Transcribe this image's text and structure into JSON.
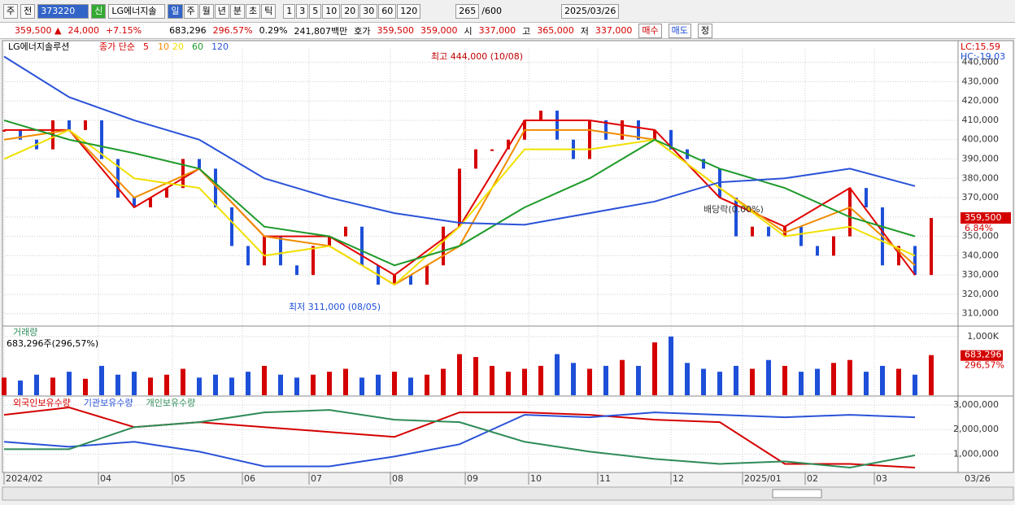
{
  "toolbar": {
    "market": "주",
    "prev": "전",
    "code": "373220",
    "tag": "신",
    "name": "LG에너지솔",
    "periods": [
      "일",
      "주",
      "월",
      "년",
      "분",
      "초",
      "틱"
    ],
    "intervals": [
      "1",
      "3",
      "5",
      "10",
      "20",
      "30",
      "60",
      "120"
    ],
    "count": "265",
    "max": "/600",
    "date": "2025/03/26"
  },
  "info": {
    "price": "359,500 ▲",
    "change": "24,000",
    "rate": "+7.15%",
    "volume": "683,296",
    "volume_rate": "296.57%",
    "turnover": "0.29%",
    "amount": "241,807백만",
    "quote_label": "호가",
    "ask": "359,500",
    "bid": "359,000",
    "open_label": "시",
    "open": "337,000",
    "high_label": "고",
    "high": "365,000",
    "low_label": "저",
    "low": "337,000",
    "buy": "매수",
    "sell": "매도",
    "correct": "정"
  },
  "chart_data": [
    {
      "type": "line",
      "title": "LG에너지솔루션",
      "legend_label": "종가 단순",
      "color": "#d40000",
      "down_color": "#1d4fd8",
      "values": [
        405000,
        400000,
        395000,
        410000,
        405000,
        410000,
        390000,
        370000,
        365000,
        370000,
        375000,
        390000,
        385000,
        365000,
        345000,
        335000,
        350000,
        335000,
        330000,
        345000,
        350000,
        355000,
        335000,
        325000,
        330000,
        325000,
        335000,
        355000,
        385000,
        395000,
        395000,
        400000,
        410000,
        415000,
        400000,
        390000,
        410000,
        400000,
        410000,
        400000,
        405000,
        395000,
        390000,
        385000,
        370000,
        350000,
        355000,
        350000,
        355000,
        345000,
        340000,
        350000,
        375000,
        365000,
        335000,
        345000,
        330000,
        359500
      ],
      "series": [
        {
          "name": "5",
          "color": "#e00000",
          "x": [
            0,
            4,
            8,
            12,
            16,
            20,
            24,
            28,
            32,
            36,
            40,
            44,
            48,
            52,
            56
          ],
          "values": [
            405000,
            405000,
            365000,
            385000,
            350000,
            350000,
            330000,
            355000,
            410000,
            410000,
            405000,
            370000,
            355000,
            375000,
            330000
          ]
        },
        {
          "name": "10",
          "color": "#f08c00",
          "x": [
            0,
            4,
            8,
            12,
            16,
            20,
            24,
            28,
            32,
            36,
            40,
            44,
            48,
            52,
            56
          ],
          "values": [
            400000,
            405000,
            370000,
            385000,
            350000,
            345000,
            325000,
            345000,
            405000,
            405000,
            400000,
            375000,
            352000,
            365000,
            335000
          ]
        },
        {
          "name": "20",
          "color": "#f0e000",
          "x": [
            0,
            4,
            8,
            12,
            16,
            20,
            24,
            28,
            32,
            36,
            40,
            44,
            48,
            52,
            56
          ],
          "values": [
            390000,
            405000,
            380000,
            375000,
            340000,
            345000,
            325000,
            355000,
            395000,
            395000,
            400000,
            375000,
            350000,
            355000,
            340000
          ]
        },
        {
          "name": "60",
          "color": "#1e9a2a",
          "x": [
            0,
            4,
            8,
            12,
            16,
            20,
            24,
            28,
            32,
            36,
            40,
            44,
            48,
            52,
            56
          ],
          "values": [
            410000,
            400000,
            393000,
            385000,
            355000,
            350000,
            335000,
            345000,
            365000,
            380000,
            400000,
            385000,
            375000,
            360000,
            350000
          ]
        },
        {
          "name": "120",
          "color": "#2a52d8",
          "x": [
            0,
            4,
            8,
            12,
            16,
            20,
            24,
            28,
            32,
            36,
            40,
            44,
            48,
            52,
            56
          ],
          "values": [
            443000,
            422000,
            410000,
            400000,
            380000,
            370000,
            362000,
            357000,
            356000,
            362000,
            368000,
            378000,
            380000,
            385000,
            376000
          ]
        }
      ],
      "ylim": [
        304000,
        447000
      ],
      "yticks": [
        {
          "value": 310000,
          "label": "310,000"
        },
        {
          "value": 320000,
          "label": "320,000"
        },
        {
          "value": 330000,
          "label": "330,000"
        },
        {
          "value": 340000,
          "label": "340,000"
        },
        {
          "value": 350000,
          "label": "350,000"
        },
        {
          "value": 360000,
          "label": "360,000"
        },
        {
          "value": 370000,
          "label": "370,000"
        },
        {
          "value": 380000,
          "label": "380,000"
        },
        {
          "value": 390000,
          "label": "390,000"
        },
        {
          "value": 400000,
          "label": "400,000"
        },
        {
          "value": 410000,
          "label": "410,000"
        },
        {
          "value": 420000,
          "label": "420,000"
        },
        {
          "value": 430000,
          "label": "430,000"
        },
        {
          "value": 440000,
          "label": "440,000"
        }
      ],
      "xticks": [
        {
          "value": 0,
          "label": "2024/02"
        },
        {
          "value": 5.8,
          "label": "04"
        },
        {
          "value": 10.35,
          "label": "05"
        },
        {
          "value": 14.65,
          "label": "06"
        },
        {
          "value": 18.75,
          "label": "07"
        },
        {
          "value": 23.75,
          "label": "08"
        },
        {
          "value": 28.35,
          "label": "09"
        },
        {
          "value": 32.25,
          "label": "10"
        },
        {
          "value": 36.5,
          "label": "11"
        },
        {
          "value": 41,
          "label": "12"
        },
        {
          "value": 45.4,
          "label": "2025/01"
        },
        {
          "value": 49.25,
          "label": "02"
        },
        {
          "value": 53.5,
          "label": "03"
        }
      ],
      "last_date": "03/26",
      "annotations": [
        "최고 444,000 (10/08)",
        "최저 311,000 (08/05)",
        "배당락(0.00%)"
      ],
      "side_labels": [
        "LC:15.59",
        "HC:-19.03"
      ],
      "last_label": "359,500",
      "last_rate": "6.84%",
      "grid": true
    },
    {
      "type": "bar",
      "title": "거래량",
      "subtitle": "683,296주(296,57%)",
      "color": "#d40000",
      "down_color": "#1d4fd8",
      "values": [
        300000,
        250000,
        350000,
        300000,
        400000,
        280000,
        500000,
        350000,
        400000,
        300000,
        350000,
        450000,
        300000,
        350000,
        300000,
        400000,
        500000,
        350000,
        300000,
        350000,
        400000,
        450000,
        300000,
        350000,
        400000,
        300000,
        350000,
        450000,
        700000,
        650000,
        500000,
        400000,
        450000,
        500000,
        700000,
        550000,
        450000,
        500000,
        600000,
        500000,
        900000,
        1000000,
        550000,
        450000,
        400000,
        500000,
        450000,
        600000,
        500000,
        400000,
        450000,
        550000,
        600000,
        400000,
        500000,
        450000,
        350000,
        683296
      ],
      "ylim": [
        0,
        1150000
      ],
      "yticks": [
        {
          "value": 1000000,
          "label": "1,000K"
        }
      ],
      "last_label": "683,296",
      "last_rate": "296,57%",
      "grid": true
    },
    {
      "type": "line",
      "x": [
        0,
        4,
        8,
        12,
        16,
        20,
        24,
        28,
        32,
        36,
        40,
        44,
        48,
        52,
        56
      ],
      "series": [
        {
          "name": "외국인보유수량",
          "color": "#d40000",
          "values": [
            2600000,
            2900000,
            2100000,
            2300000,
            2100000,
            1900000,
            1700000,
            2700000,
            2700000,
            2600000,
            2400000,
            2300000,
            600000,
            600000,
            450000
          ]
        },
        {
          "name": "기관보유수량",
          "color": "#2a52d8",
          "values": [
            1500000,
            1300000,
            1500000,
            1100000,
            500000,
            500000,
            900000,
            1400000,
            2600000,
            2500000,
            2700000,
            2600000,
            2500000,
            2600000,
            2500000
          ]
        },
        {
          "name": "개인보유수량",
          "color": "#2e8b57",
          "values": [
            1200000,
            1200000,
            2100000,
            2300000,
            2700000,
            2800000,
            2400000,
            2300000,
            1500000,
            1100000,
            800000,
            600000,
            700000,
            450000,
            950000
          ]
        }
      ],
      "ylim": [
        250000,
        3300000
      ],
      "yticks": [
        {
          "value": 1000000,
          "label": "1,000,000"
        },
        {
          "value": 2000000,
          "label": "2,000,000"
        },
        {
          "value": 3000000,
          "label": "3,000,000"
        }
      ],
      "grid": true
    }
  ]
}
